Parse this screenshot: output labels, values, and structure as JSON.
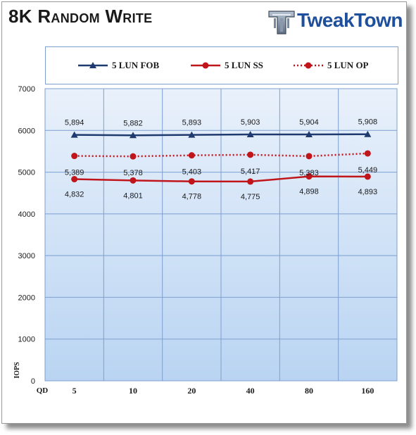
{
  "header": {
    "title": "8K Random Write",
    "logo_text": "TweakTown"
  },
  "colors": {
    "fob": "#1f3a6e",
    "ss": "#c0151b",
    "op": "#c0151b",
    "plot_bg_top": "#e9f1fb",
    "plot_bg_bottom": "#b9d4f2",
    "logo": "#1d4f9c"
  },
  "chart_data": {
    "type": "line",
    "title": "8K Random Write",
    "xlabel": "QD",
    "ylabel": "IOPS",
    "categories": [
      "5",
      "10",
      "20",
      "40",
      "80",
      "160"
    ],
    "ylim": [
      0,
      7000
    ],
    "yticks": [
      0,
      1000,
      2000,
      3000,
      4000,
      5000,
      6000,
      7000
    ],
    "grid": true,
    "legend_position": "top",
    "series": [
      {
        "name": "5 LUN FOB",
        "values": [
          5894,
          5882,
          5893,
          5903,
          5904,
          5908
        ],
        "labels": [
          "5,894",
          "5,882",
          "5,893",
          "5,903",
          "5,904",
          "5,908"
        ],
        "marker": "triangle",
        "line": "solid",
        "color": "#1f3a6e"
      },
      {
        "name": "5 LUN SS",
        "values": [
          4832,
          4801,
          4778,
          4775,
          4898,
          4893
        ],
        "labels": [
          "4,832",
          "4,801",
          "4,778",
          "4,775",
          "4,898",
          "4,893"
        ],
        "marker": "circle",
        "line": "solid",
        "color": "#c0151b"
      },
      {
        "name": "5 LUN OP",
        "values": [
          5389,
          5378,
          5403,
          5417,
          5383,
          5449
        ],
        "labels": [
          "5,389",
          "5,378",
          "5,403",
          "5,417",
          "5,383",
          "5,449"
        ],
        "marker": "circle",
        "line": "dotted",
        "color": "#c0151b"
      }
    ]
  }
}
